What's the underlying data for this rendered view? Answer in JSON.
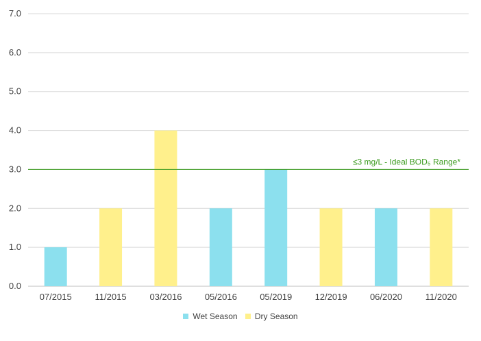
{
  "chart_data": {
    "type": "bar",
    "categories": [
      "07/2015",
      "11/2015",
      "03/2016",
      "05/2016",
      "05/2019",
      "12/2019",
      "06/2020",
      "11/2020"
    ],
    "values": [
      1.0,
      2.0,
      4.0,
      2.0,
      3.0,
      2.0,
      2.0,
      2.0
    ],
    "season": [
      "Wet Season",
      "Dry Season",
      "Dry Season",
      "Wet Season",
      "Wet Season",
      "Dry Season",
      "Wet Season",
      "Dry Season"
    ],
    "series": [
      {
        "name": "Wet Season",
        "color": "#8ce0ee"
      },
      {
        "name": "Dry Season",
        "color": "#fff08c"
      }
    ],
    "y_ticks": [
      "0.0",
      "1.0",
      "2.0",
      "3.0",
      "4.0",
      "5.0",
      "6.0",
      "7.0"
    ],
    "ylim": [
      0,
      7
    ],
    "grid": true,
    "legend_position": "bottom",
    "reference_line": {
      "value": 3.0,
      "label": "≤3 mg/L - Ideal BOD₅ Range*",
      "color": "#3a9a1e"
    }
  }
}
